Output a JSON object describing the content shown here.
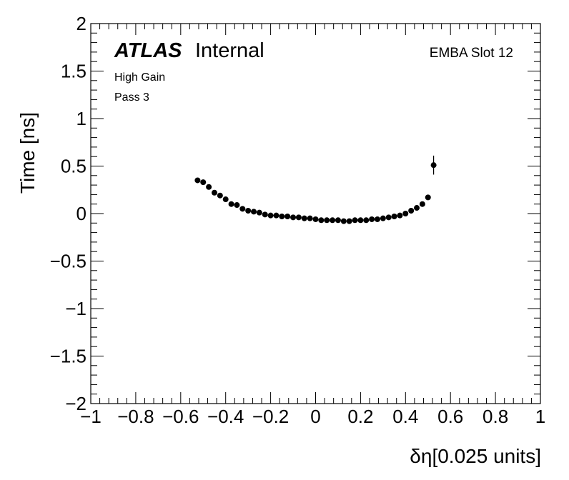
{
  "chart_data": {
    "type": "scatter",
    "title": "",
    "xlabel": "δη[0.025 units]",
    "ylabel": "Time [ns]",
    "xlim": [
      -1,
      1
    ],
    "ylim": [
      -2,
      2
    ],
    "x_ticks": [
      -1,
      -0.8,
      -0.6,
      -0.4,
      -0.2,
      0,
      0.2,
      0.4,
      0.6,
      0.8,
      1
    ],
    "x_tick_labels": [
      "−1",
      "−0.8",
      "−0.6",
      "−0.4",
      "−0.2",
      "0",
      "0.2",
      "0.4",
      "0.6",
      "0.8",
      "1"
    ],
    "y_ticks": [
      -2,
      -1.5,
      -1,
      -0.5,
      0,
      0.5,
      1,
      1.5,
      2
    ],
    "y_tick_labels": [
      "−2",
      "−1.5",
      "−1",
      "−0.5",
      "0",
      "0.5",
      "1",
      "1.5",
      "2"
    ],
    "series": [
      {
        "name": "EMBA Slot 12",
        "x": [
          -0.525,
          -0.5,
          -0.475,
          -0.45,
          -0.425,
          -0.4,
          -0.375,
          -0.35,
          -0.325,
          -0.3,
          -0.275,
          -0.25,
          -0.225,
          -0.2,
          -0.175,
          -0.15,
          -0.125,
          -0.1,
          -0.075,
          -0.05,
          -0.025,
          0.0,
          0.025,
          0.05,
          0.075,
          0.1,
          0.125,
          0.15,
          0.175,
          0.2,
          0.225,
          0.25,
          0.275,
          0.3,
          0.325,
          0.35,
          0.375,
          0.4,
          0.425,
          0.45,
          0.475,
          0.5,
          0.525
        ],
        "y": [
          0.35,
          0.33,
          0.28,
          0.22,
          0.19,
          0.15,
          0.1,
          0.09,
          0.05,
          0.03,
          0.02,
          0.01,
          -0.01,
          -0.02,
          -0.02,
          -0.03,
          -0.03,
          -0.04,
          -0.04,
          -0.05,
          -0.05,
          -0.06,
          -0.07,
          -0.07,
          -0.07,
          -0.07,
          -0.08,
          -0.08,
          -0.07,
          -0.07,
          -0.07,
          -0.06,
          -0.06,
          -0.05,
          -0.04,
          -0.03,
          -0.02,
          0.0,
          0.03,
          0.06,
          0.1,
          0.17,
          0.51
        ],
        "yerr": [
          0.01,
          0.01,
          0.01,
          0.01,
          0.01,
          0.01,
          0.01,
          0.01,
          0.01,
          0.01,
          0.01,
          0.01,
          0.01,
          0.01,
          0.01,
          0.01,
          0.01,
          0.01,
          0.01,
          0.01,
          0.01,
          0.01,
          0.01,
          0.01,
          0.01,
          0.01,
          0.01,
          0.01,
          0.01,
          0.01,
          0.01,
          0.01,
          0.01,
          0.01,
          0.01,
          0.01,
          0.01,
          0.01,
          0.01,
          0.01,
          0.01,
          0.02,
          0.1
        ]
      }
    ],
    "annotations": {
      "atlas_label": "ATLAS",
      "atlas_status": "Internal",
      "gain": "High Gain",
      "pass": "Pass 3",
      "slot": "EMBA Slot 12"
    }
  }
}
